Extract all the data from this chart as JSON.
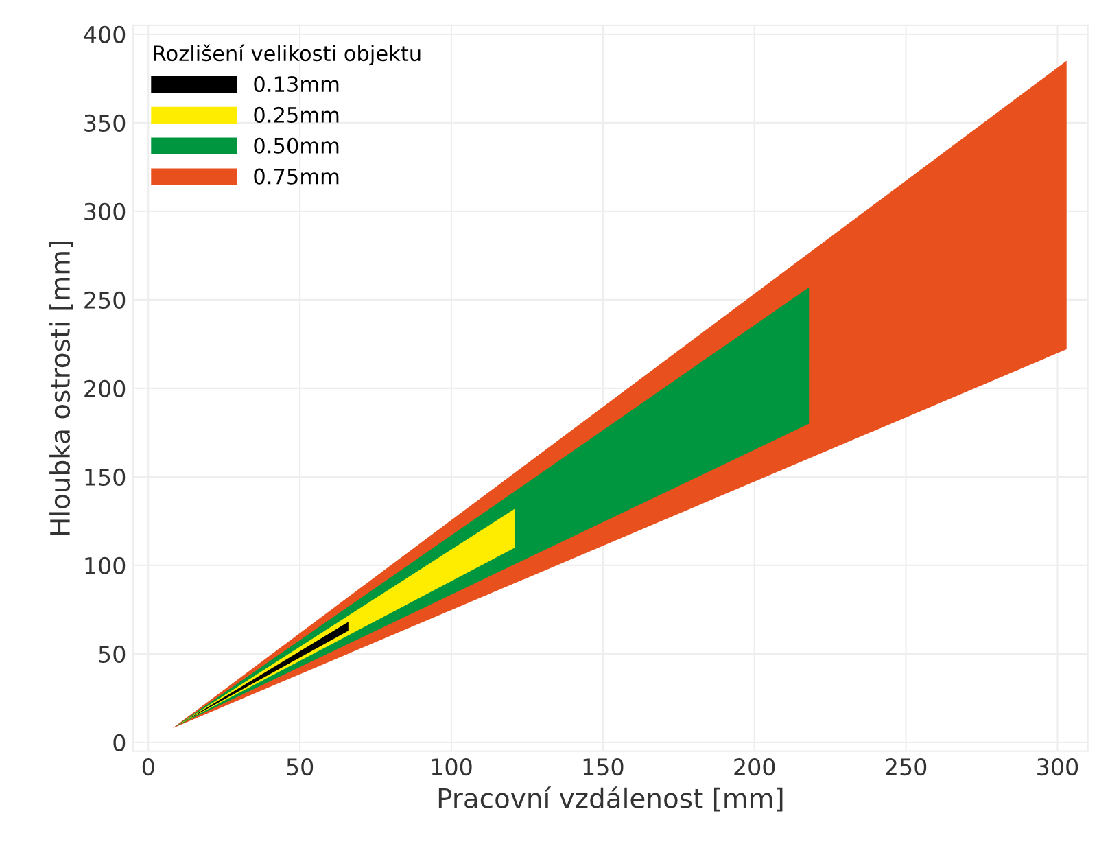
{
  "chart_data": {
    "type": "area",
    "xlabel": "Pracovní vzdálenost [mm]",
    "ylabel": "Hloubka ostrosti [mm]",
    "legend_title": "Rozlišení velikosti objektu",
    "series": [
      {
        "name": "0.13mm",
        "color": "#000000",
        "x": [
          11,
          66,
          66,
          11
        ],
        "values": [
          11,
          68,
          63,
          11
        ]
      },
      {
        "name": "0.25mm",
        "color": "#ffed00",
        "x": [
          10,
          121,
          121,
          10
        ],
        "values": [
          10,
          132,
          110,
          10
        ]
      },
      {
        "name": "0.50mm",
        "color": "#009640",
        "x": [
          9,
          218,
          218,
          9
        ],
        "values": [
          9,
          257,
          180,
          9
        ]
      },
      {
        "name": "0.75mm",
        "color": "#e8501e",
        "x": [
          8,
          303,
          303,
          8
        ],
        "values": [
          8,
          385,
          222,
          8
        ]
      }
    ],
    "xlim": [
      -5,
      310
    ],
    "ylim": [
      -5,
      405
    ],
    "xticks": [
      0,
      50,
      100,
      150,
      200,
      250,
      300
    ],
    "yticks": [
      0,
      50,
      100,
      150,
      200,
      250,
      300,
      350,
      400
    ],
    "grid": true,
    "legend": "top left"
  }
}
